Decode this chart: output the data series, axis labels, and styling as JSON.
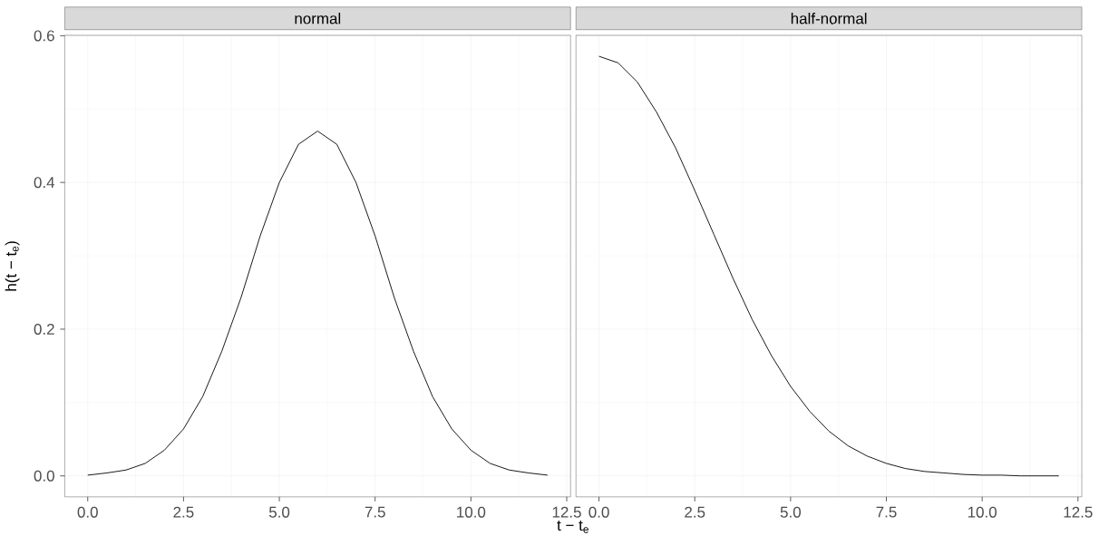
{
  "chart_data": [
    {
      "type": "line",
      "title": "normal",
      "xlabel": "t − t$_{e}$",
      "ylabel": "h(t − t$_{e}$)",
      "grid": true,
      "xlim": [
        -0.6,
        12.6
      ],
      "ylim": [
        -0.0286,
        0.6006
      ],
      "xticks": [
        {
          "value": 0,
          "label": "0.0"
        },
        {
          "value": 2.5,
          "label": "2.5"
        },
        {
          "value": 5,
          "label": "5.0"
        },
        {
          "value": 7.5,
          "label": "7.5"
        },
        {
          "value": 10,
          "label": "10.0"
        },
        {
          "value": 12.5,
          "label": "12.5"
        }
      ],
      "yticks": [
        {
          "value": 0,
          "label": "0.0"
        },
        {
          "value": 0.2,
          "label": "0.2"
        },
        {
          "value": 0.4,
          "label": "0.4"
        },
        {
          "value": 0.6,
          "label": "0.6"
        }
      ],
      "x": [
        0,
        0.5,
        1,
        1.5,
        2,
        2.5,
        3,
        3.5,
        4,
        4.5,
        5,
        5.5,
        6,
        6.5,
        7,
        7.5,
        8,
        8.5,
        9,
        9.5,
        10,
        10.5,
        11,
        11.5,
        12
      ],
      "series": [
        {
          "color": "#000000",
          "values": [
            0.001,
            0.004,
            0.008,
            0.017,
            0.035,
            0.064,
            0.108,
            0.17,
            0.243,
            0.327,
            0.4,
            0.452,
            0.47,
            0.452,
            0.4,
            0.327,
            0.243,
            0.17,
            0.108,
            0.064,
            0.035,
            0.017,
            0.008,
            0.004,
            0.001
          ]
        }
      ]
    },
    {
      "type": "line",
      "title": "half-normal",
      "grid": true,
      "tick_labels": "x",
      "xlim": [
        -0.6,
        12.6
      ],
      "ylim": [
        -0.0286,
        0.6006
      ],
      "xticks": [
        {
          "value": 0,
          "label": "0.0"
        },
        {
          "value": 2.5,
          "label": "2.5"
        },
        {
          "value": 5,
          "label": "5.0"
        },
        {
          "value": 7.5,
          "label": "7.5"
        },
        {
          "value": 10,
          "label": "10.0"
        },
        {
          "value": 12.5,
          "label": "12.5"
        }
      ],
      "yticks": [
        {
          "value": 0,
          "label": null
        },
        {
          "value": 0.2,
          "label": null
        },
        {
          "value": 0.4,
          "label": null
        },
        {
          "value": 0.6,
          "label": null
        }
      ],
      "x": [
        0,
        0.5,
        1,
        1.5,
        2,
        2.5,
        3,
        3.5,
        4,
        4.5,
        5,
        5.5,
        6,
        6.5,
        7,
        7.5,
        8,
        8.5,
        9,
        9.5,
        10,
        10.5,
        11,
        11.5,
        12
      ],
      "series": [
        {
          "color": "#000000",
          "values": [
            0.572,
            0.563,
            0.537,
            0.496,
            0.447,
            0.389,
            0.329,
            0.269,
            0.213,
            0.164,
            0.122,
            0.088,
            0.061,
            0.041,
            0.027,
            0.017,
            0.01,
            0.006,
            0.004,
            0.002,
            0.001,
            0.001,
            0,
            0,
            0
          ]
        }
      ]
    }
  ]
}
